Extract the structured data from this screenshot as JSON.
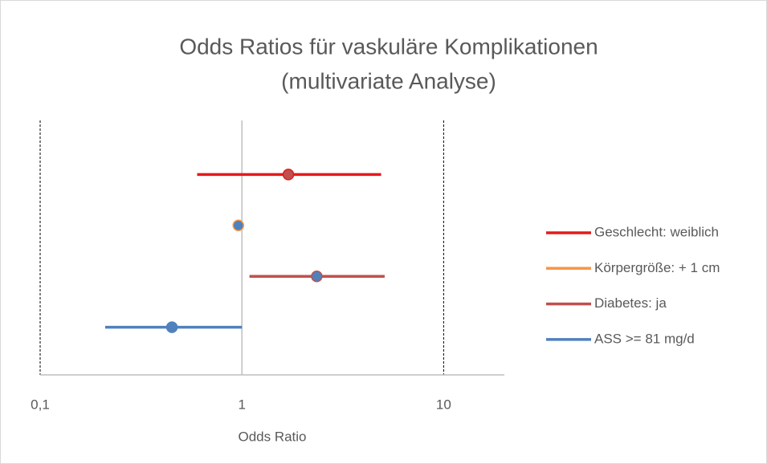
{
  "chart_data": {
    "type": "forest",
    "title": [
      "Odds Ratios für vaskuläre Komplikationen",
      "(multivariate Analyse)"
    ],
    "xlabel": "Odds Ratio",
    "log_x": true,
    "xlim": [
      0.1,
      20
    ],
    "xticks": [
      {
        "value": 0.1,
        "label": "0,1"
      },
      1,
      10
    ],
    "reference_line": 1,
    "legend": "right",
    "series": [
      {
        "name": "Geschlecht: weiblich",
        "color": "#e31a1c",
        "marker_color": "#c0504d",
        "value": 1.7,
        "low": 0.6,
        "high": 4.9
      },
      {
        "name": "Körpergröße: + 1 cm",
        "color": "#f79646",
        "marker_color": "#4f81bd",
        "value": 0.96,
        "low": 0.93,
        "high": 1.02
      },
      {
        "name": "Diabetes: ja",
        "color": "#c0504d",
        "marker_color": "#4f81bd",
        "value": 2.35,
        "low": 1.09,
        "high": 5.1
      },
      {
        "name": "ASS >= 81 mg/d",
        "color": "#4f81bd",
        "marker_color": "#4f81bd",
        "value": 0.45,
        "low": 0.21,
        "high": 1.0
      }
    ]
  }
}
